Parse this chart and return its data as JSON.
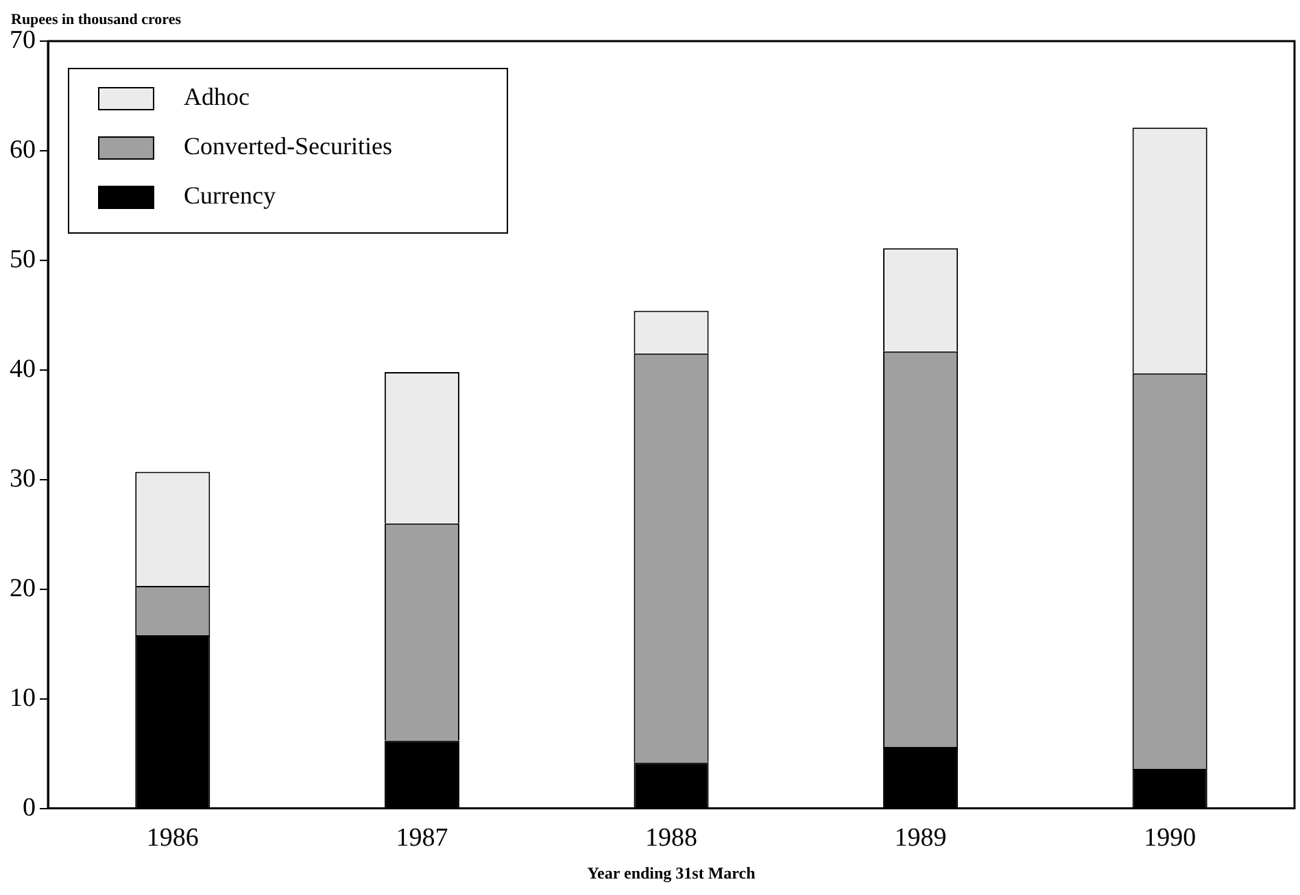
{
  "chart_data": {
    "type": "bar",
    "stacked": true,
    "ylabel": "Rupees in thousand crores",
    "xlabel": "Year ending 31st March",
    "categories": [
      "1986",
      "1987",
      "1988",
      "1989",
      "1990"
    ],
    "series": [
      {
        "name": "Currency",
        "color": "#000000",
        "values": [
          15.8,
          6.2,
          4.2,
          5.6,
          3.6
        ]
      },
      {
        "name": "Converted-Securities",
        "color": "#a0a0a0",
        "values": [
          4.5,
          19.8,
          37.3,
          36.1,
          36.1
        ]
      },
      {
        "name": "Adhoc",
        "color": "#ebebeb",
        "values": [
          10.4,
          13.8,
          3.9,
          9.4,
          22.4
        ]
      }
    ],
    "ylim": [
      0,
      70
    ],
    "yticks": [
      0,
      10,
      20,
      30,
      40,
      50,
      60,
      70
    ],
    "grid": false,
    "legend": "top left"
  }
}
